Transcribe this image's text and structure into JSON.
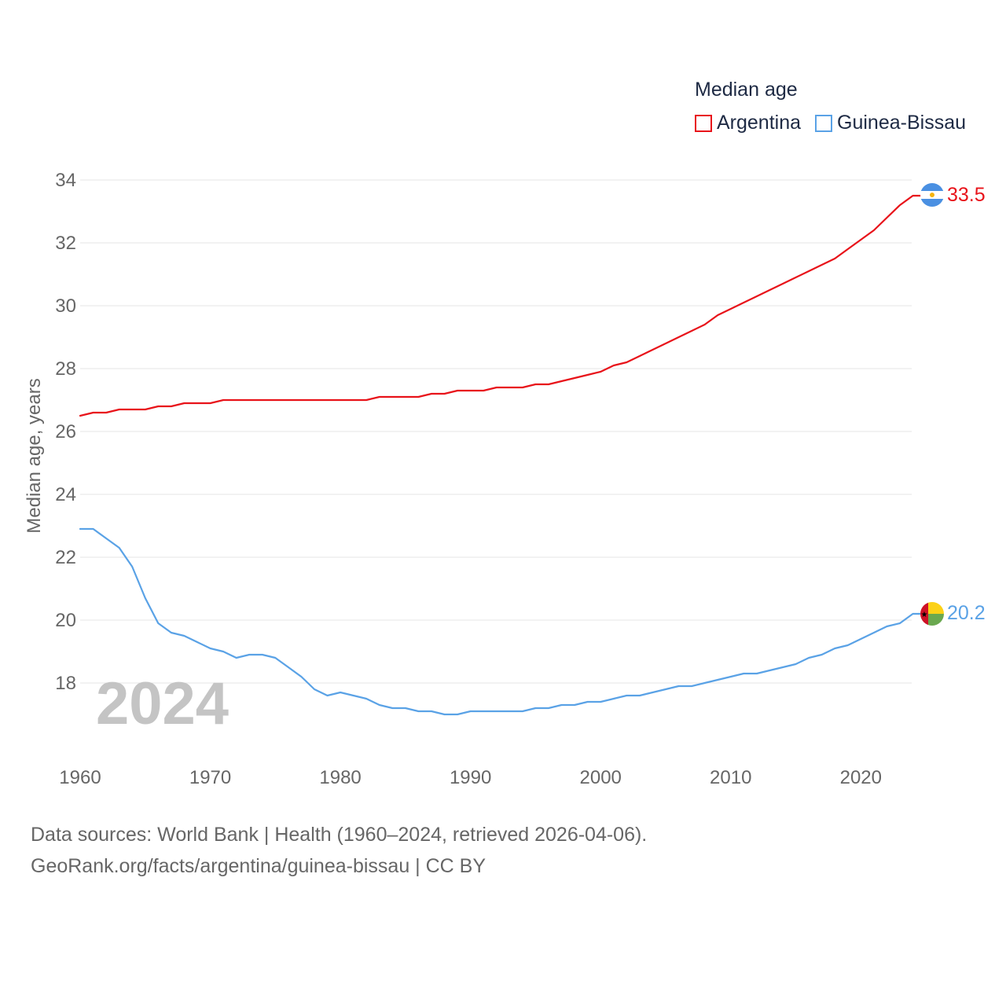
{
  "legend": {
    "title": "Median age",
    "items": [
      {
        "label": "Argentina",
        "color": "#e8131a"
      },
      {
        "label": "Guinea-Bissau",
        "color": "#5aa2e6"
      }
    ]
  },
  "footer": {
    "line1": "Data sources: World Bank | Health (1960–2024, retrieved 2026-04-06).",
    "line2": "GeoRank.org/facts/argentina/guinea-bissau | CC BY"
  },
  "chart_data": {
    "type": "line",
    "title": "Median age",
    "xlabel": "",
    "ylabel": "Median age, years",
    "year_watermark": "2024",
    "xlim": [
      1960,
      2025
    ],
    "ylim": [
      16,
      35
    ],
    "x_ticks": [
      1960,
      1970,
      1980,
      1990,
      2000,
      2010,
      2020
    ],
    "y_ticks": [
      18,
      20,
      22,
      24,
      26,
      28,
      30,
      32,
      34
    ],
    "grid": true,
    "legend_position": "top-right",
    "x": [
      1960,
      1961,
      1962,
      1963,
      1964,
      1965,
      1966,
      1967,
      1968,
      1969,
      1970,
      1971,
      1972,
      1973,
      1974,
      1975,
      1976,
      1977,
      1978,
      1979,
      1980,
      1981,
      1982,
      1983,
      1984,
      1985,
      1986,
      1987,
      1988,
      1989,
      1990,
      1991,
      1992,
      1993,
      1994,
      1995,
      1996,
      1997,
      1998,
      1999,
      2000,
      2001,
      2002,
      2003,
      2004,
      2005,
      2006,
      2007,
      2008,
      2009,
      2010,
      2011,
      2012,
      2013,
      2014,
      2015,
      2016,
      2017,
      2018,
      2019,
      2020,
      2021,
      2022,
      2023,
      2024
    ],
    "series": [
      {
        "name": "Argentina",
        "color": "#e8131a",
        "end_label": "33.5",
        "values": [
          26.5,
          26.6,
          26.6,
          26.7,
          26.7,
          26.7,
          26.8,
          26.8,
          26.9,
          26.9,
          26.9,
          27.0,
          27.0,
          27.0,
          27.0,
          27.0,
          27.0,
          27.0,
          27.0,
          27.0,
          27.0,
          27.0,
          27.0,
          27.1,
          27.1,
          27.1,
          27.1,
          27.2,
          27.2,
          27.3,
          27.3,
          27.3,
          27.4,
          27.4,
          27.4,
          27.5,
          27.5,
          27.6,
          27.7,
          27.8,
          27.9,
          28.1,
          28.2,
          28.4,
          28.6,
          28.8,
          29.0,
          29.2,
          29.4,
          29.7,
          29.9,
          30.1,
          30.3,
          30.5,
          30.7,
          30.9,
          31.1,
          31.3,
          31.5,
          31.8,
          32.1,
          32.4,
          32.8,
          33.2,
          33.5
        ]
      },
      {
        "name": "Guinea-Bissau",
        "color": "#5aa2e6",
        "end_label": "20.2",
        "values": [
          22.9,
          22.9,
          22.6,
          22.3,
          21.7,
          20.7,
          19.9,
          19.6,
          19.5,
          19.3,
          19.1,
          19.0,
          18.8,
          18.9,
          18.9,
          18.8,
          18.5,
          18.2,
          17.8,
          17.6,
          17.7,
          17.6,
          17.5,
          17.3,
          17.2,
          17.2,
          17.1,
          17.1,
          17.0,
          17.0,
          17.1,
          17.1,
          17.1,
          17.1,
          17.1,
          17.2,
          17.2,
          17.3,
          17.3,
          17.4,
          17.4,
          17.5,
          17.6,
          17.6,
          17.7,
          17.8,
          17.9,
          17.9,
          18.0,
          18.1,
          18.2,
          18.3,
          18.3,
          18.4,
          18.5,
          18.6,
          18.8,
          18.9,
          19.1,
          19.2,
          19.4,
          19.6,
          19.8,
          19.9,
          20.2
        ]
      }
    ]
  }
}
